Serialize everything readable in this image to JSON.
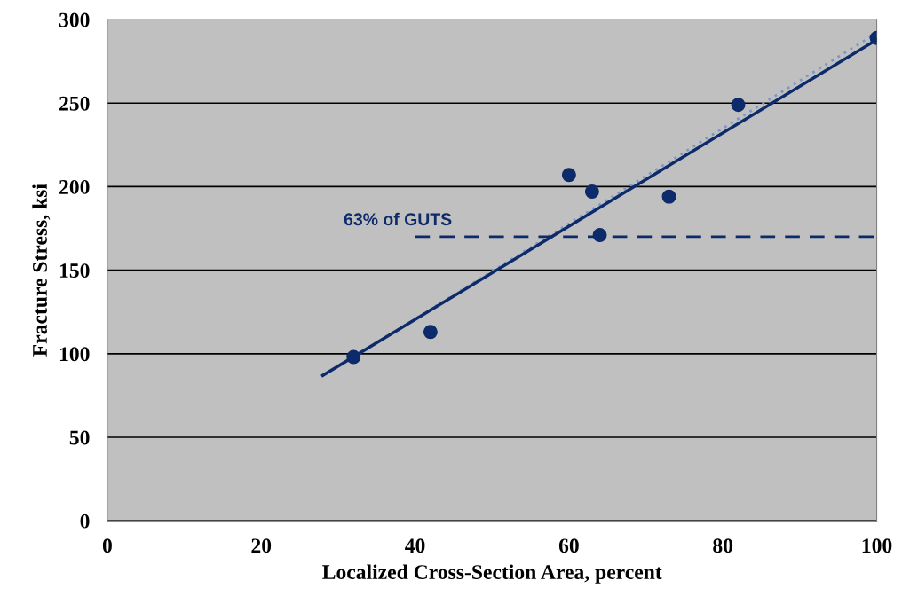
{
  "chart_data": {
    "type": "scatter",
    "xlabel": "Localized Cross-Section Area, percent",
    "ylabel": "Fracture Stress, ksi",
    "xlim": [
      0,
      100
    ],
    "ylim": [
      0,
      300
    ],
    "xticks": [
      0,
      20,
      40,
      60,
      80,
      100
    ],
    "yticks": [
      0,
      50,
      100,
      150,
      200,
      250,
      300
    ],
    "grid": "y",
    "series": [
      {
        "type": "line",
        "color": "#7b96c8",
        "line_style": "dotted",
        "x": [
          32,
          100
        ],
        "values": [
          98,
          292
        ]
      },
      {
        "type": "line",
        "color": "#0d2a6b",
        "line_style": "solid",
        "x": [
          28,
          100
        ],
        "values": [
          87,
          288
        ]
      },
      {
        "type": "line",
        "color": "#0d2a6b",
        "line_style": "dashed",
        "x": [
          40,
          100
        ],
        "values": [
          170,
          170
        ]
      },
      {
        "color": "#0d2a6b",
        "marker": "circle",
        "x": [
          32,
          42,
          60,
          63,
          64,
          73,
          82,
          100
        ],
        "values": [
          98,
          113,
          207,
          197,
          171,
          194,
          249,
          289
        ]
      }
    ],
    "annotations": [
      {
        "text": "63% of GUTS",
        "x": 40,
        "y": 170
      }
    ]
  }
}
